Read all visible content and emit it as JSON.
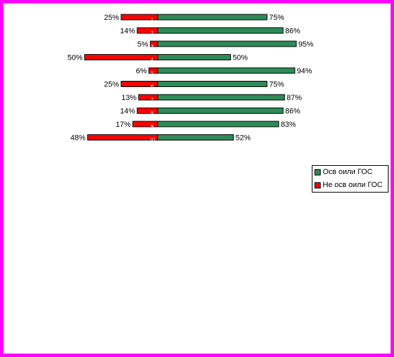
{
  "chart_data": {
    "type": "bar",
    "orientation": "horizontal",
    "stacked": "diverging",
    "categories": [
      "1",
      "2",
      "3",
      "4",
      "5",
      "6",
      "7",
      "8",
      "9",
      "10"
    ],
    "series": [
      {
        "name": "Не осв оили ГОС",
        "color": "#ff0000",
        "values": [
          25,
          14,
          5,
          50,
          6,
          25,
          13,
          14,
          17,
          48
        ],
        "labels": [
          "25%",
          "14%",
          "5%",
          "50%",
          "6%",
          "25%",
          "13%",
          "14%",
          "17%",
          "48%"
        ]
      },
      {
        "name": "Осв оили ГОС",
        "color": "#2e8b57",
        "values": [
          75,
          86,
          95,
          50,
          94,
          75,
          87,
          86,
          83,
          52
        ],
        "labels": [
          "75%",
          "86%",
          "95%",
          "50%",
          "94%",
          "75%",
          "87%",
          "86%",
          "83%",
          "52%"
        ]
      }
    ],
    "xlim": [
      -50,
      100
    ],
    "legend_position": "right",
    "grid": false
  },
  "legend": {
    "items": [
      {
        "label": "Осв оили ГОС",
        "color": "#2e8b57"
      },
      {
        "label": "Не осв оили ГОС",
        "color": "#ff0000"
      }
    ]
  },
  "colors": {
    "frame": "#ff00ff"
  }
}
